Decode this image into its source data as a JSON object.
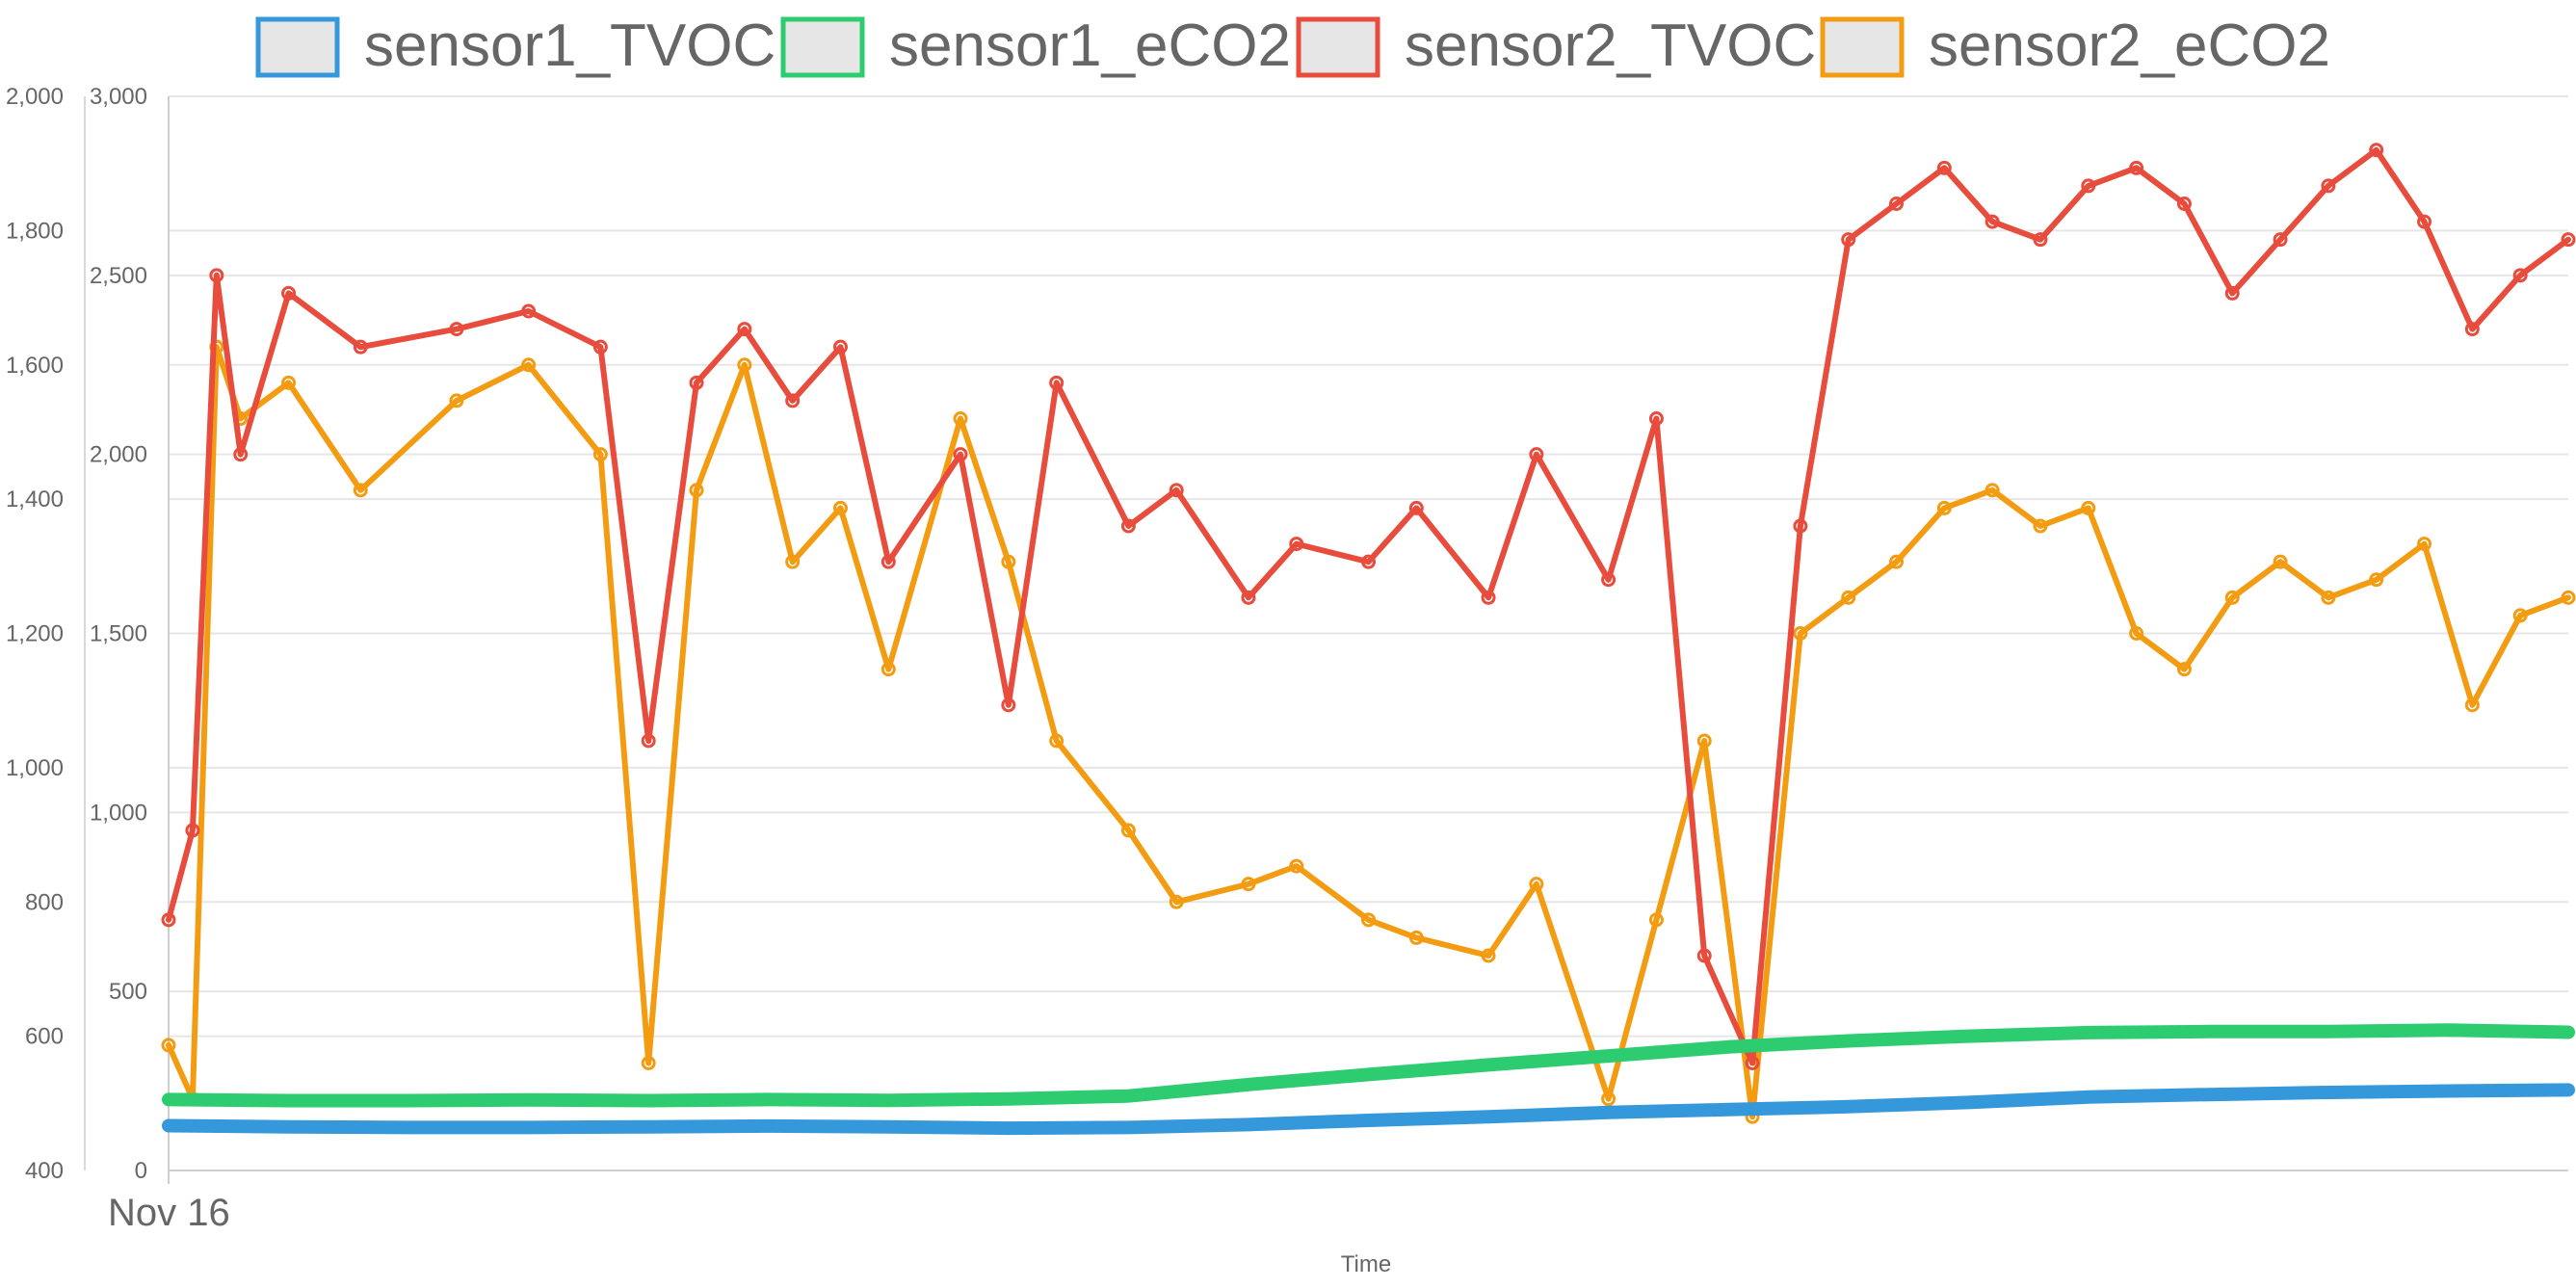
{
  "chart_data": {
    "type": "line",
    "xlabel": "Time",
    "x_tick_labels": [
      "Nov 16"
    ],
    "grid": true,
    "legend_position": "top",
    "axes": {
      "y_left_outer": {
        "range": [
          400,
          2000
        ],
        "ticks": [
          "2,000",
          "1,800",
          "1,600",
          "1,400",
          "1,200",
          "1,000",
          "800",
          "600",
          "400"
        ]
      },
      "y_left_inner": {
        "range": [
          0,
          3000
        ],
        "ticks": [
          "3,000",
          "2,500",
          "2,000",
          "1,500",
          "1,000",
          "500",
          "0"
        ]
      }
    },
    "series": [
      {
        "name": "sensor1_TVOC",
        "color": "#3498db",
        "axis": "y_left_inner",
        "x": [
          0,
          0.05,
          0.1,
          0.15,
          0.2,
          0.25,
          0.3,
          0.35,
          0.4,
          0.45,
          0.5,
          0.55,
          0.6,
          0.65,
          0.7,
          0.75,
          0.8,
          0.85,
          0.9,
          0.95,
          1.0
        ],
        "values": [
          125,
          122,
          120,
          120,
          122,
          124,
          122,
          118,
          120,
          128,
          140,
          150,
          162,
          170,
          178,
          190,
          205,
          212,
          218,
          222,
          225
        ]
      },
      {
        "name": "sensor1_eCO2",
        "color": "#2ecc71",
        "axis": "y_left_inner",
        "x": [
          0,
          0.05,
          0.1,
          0.15,
          0.2,
          0.25,
          0.3,
          0.35,
          0.4,
          0.45,
          0.5,
          0.55,
          0.6,
          0.65,
          0.7,
          0.75,
          0.8,
          0.85,
          0.9,
          0.95,
          1.0
        ],
        "values": [
          198,
          195,
          195,
          197,
          195,
          198,
          196,
          200,
          208,
          240,
          268,
          295,
          320,
          345,
          362,
          375,
          385,
          388,
          388,
          392,
          386
        ]
      },
      {
        "name": "sensor2_TVOC",
        "color": "#e74c3c",
        "axis": "y_left_inner",
        "x": [
          0,
          0.01,
          0.02,
          0.03,
          0.05,
          0.08,
          0.12,
          0.15,
          0.18,
          0.2,
          0.22,
          0.24,
          0.26,
          0.28,
          0.3,
          0.33,
          0.35,
          0.37,
          0.4,
          0.42,
          0.45,
          0.47,
          0.5,
          0.52,
          0.55,
          0.57,
          0.6,
          0.62,
          0.64,
          0.66,
          0.68,
          0.7,
          0.72,
          0.74,
          0.76,
          0.78,
          0.8,
          0.82,
          0.84,
          0.86,
          0.88,
          0.9,
          0.92,
          0.94,
          0.96,
          0.98,
          1.0
        ],
        "values": [
          700,
          950,
          2500,
          2000,
          2450,
          2300,
          2350,
          2400,
          2300,
          1200,
          2200,
          2350,
          2150,
          2300,
          1700,
          2000,
          1300,
          2200,
          1800,
          1900,
          1600,
          1750,
          1700,
          1850,
          1600,
          2000,
          1650,
          2100,
          600,
          300,
          1800,
          2600,
          2700,
          2800,
          2650,
          2600,
          2750,
          2800,
          2700,
          2450,
          2600,
          2750,
          2850,
          2650,
          2350,
          2500,
          2600
        ]
      },
      {
        "name": "sensor2_eCO2",
        "color": "#f39c12",
        "axis": "y_left_inner",
        "x": [
          0,
          0.01,
          0.02,
          0.03,
          0.05,
          0.08,
          0.12,
          0.15,
          0.18,
          0.2,
          0.22,
          0.24,
          0.26,
          0.28,
          0.3,
          0.33,
          0.35,
          0.37,
          0.4,
          0.42,
          0.45,
          0.47,
          0.5,
          0.52,
          0.55,
          0.57,
          0.6,
          0.62,
          0.64,
          0.66,
          0.68,
          0.7,
          0.72,
          0.74,
          0.76,
          0.78,
          0.8,
          0.82,
          0.84,
          0.86,
          0.88,
          0.9,
          0.92,
          0.94,
          0.96,
          0.98,
          1.0
        ],
        "values": [
          350,
          200,
          2300,
          2100,
          2200,
          1900,
          2150,
          2250,
          2000,
          300,
          1900,
          2250,
          1700,
          1850,
          1400,
          2100,
          1700,
          1200,
          950,
          750,
          800,
          850,
          700,
          650,
          600,
          800,
          200,
          700,
          1200,
          150,
          1500,
          1600,
          1700,
          1850,
          1900,
          1800,
          1850,
          1500,
          1400,
          1600,
          1700,
          1600,
          1650,
          1750,
          1300,
          1550,
          1600
        ]
      }
    ]
  }
}
